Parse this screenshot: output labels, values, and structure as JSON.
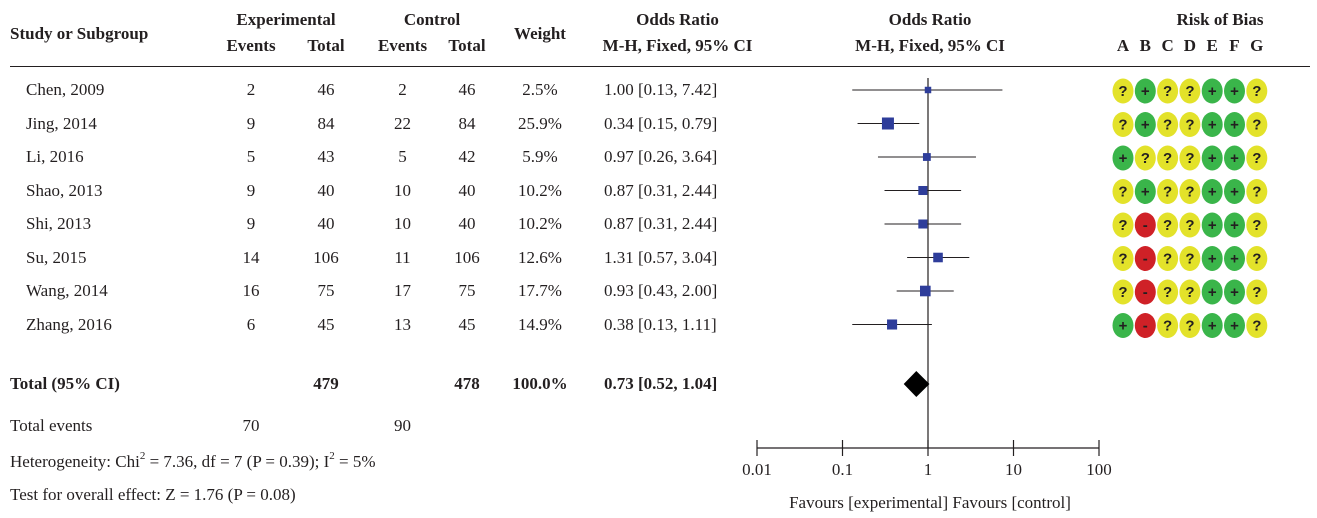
{
  "header": {
    "study_col": "Study or Subgroup",
    "experimental": "Experimental",
    "control": "Control",
    "events": "Events",
    "total": "Total",
    "weight": "Weight",
    "or_title": "Odds Ratio",
    "or_method": "M-H, Fixed, 95% CI",
    "plot_title": "Odds Ratio",
    "plot_method": "M-H, Fixed, 95% CI",
    "rob_title": "Risk of Bias",
    "rob_letters": [
      "A",
      "B",
      "C",
      "D",
      "E",
      "F",
      "G"
    ]
  },
  "studies": [
    {
      "name": "Chen, 2009",
      "exp_events": "2",
      "exp_total": "46",
      "ctrl_events": "2",
      "ctrl_total": "46",
      "weight": "2.5%",
      "ci": "1.00 [0.13, 7.42]",
      "or": 1.0,
      "low": 0.13,
      "high": 7.42,
      "w": 2.5,
      "rob": [
        "?",
        "+",
        "?",
        "?",
        "+",
        "+",
        "?"
      ]
    },
    {
      "name": "Jing, 2014",
      "exp_events": "9",
      "exp_total": "84",
      "ctrl_events": "22",
      "ctrl_total": "84",
      "weight": "25.9%",
      "ci": "0.34 [0.15, 0.79]",
      "or": 0.34,
      "low": 0.15,
      "high": 0.79,
      "w": 25.9,
      "rob": [
        "?",
        "+",
        "?",
        "?",
        "+",
        "+",
        "?"
      ]
    },
    {
      "name": "Li, 2016",
      "exp_events": "5",
      "exp_total": "43",
      "ctrl_events": "5",
      "ctrl_total": "42",
      "weight": "5.9%",
      "ci": "0.97 [0.26, 3.64]",
      "or": 0.97,
      "low": 0.26,
      "high": 3.64,
      "w": 5.9,
      "rob": [
        "+",
        "?",
        "?",
        "?",
        "+",
        "+",
        "?"
      ]
    },
    {
      "name": "Shao, 2013",
      "exp_events": "9",
      "exp_total": "40",
      "ctrl_events": "10",
      "ctrl_total": "40",
      "weight": "10.2%",
      "ci": "0.87 [0.31, 2.44]",
      "or": 0.87,
      "low": 0.31,
      "high": 2.44,
      "w": 10.2,
      "rob": [
        "?",
        "+",
        "?",
        "?",
        "+",
        "+",
        "?"
      ]
    },
    {
      "name": "Shi, 2013",
      "exp_events": "9",
      "exp_total": "40",
      "ctrl_events": "10",
      "ctrl_total": "40",
      "weight": "10.2%",
      "ci": "0.87 [0.31, 2.44]",
      "or": 0.87,
      "low": 0.31,
      "high": 2.44,
      "w": 10.2,
      "rob": [
        "?",
        "-",
        "?",
        "?",
        "+",
        "+",
        "?"
      ]
    },
    {
      "name": "Su, 2015",
      "exp_events": "14",
      "exp_total": "106",
      "ctrl_events": "11",
      "ctrl_total": "106",
      "weight": "12.6%",
      "ci": "1.31 [0.57, 3.04]",
      "or": 1.31,
      "low": 0.57,
      "high": 3.04,
      "w": 12.6,
      "rob": [
        "?",
        "-",
        "?",
        "?",
        "+",
        "+",
        "?"
      ]
    },
    {
      "name": "Wang, 2014",
      "exp_events": "16",
      "exp_total": "75",
      "ctrl_events": "17",
      "ctrl_total": "75",
      "weight": "17.7%",
      "ci": "0.93 [0.43, 2.00]",
      "or": 0.93,
      "low": 0.43,
      "high": 2.0,
      "w": 17.7,
      "rob": [
        "?",
        "-",
        "?",
        "?",
        "+",
        "+",
        "?"
      ]
    },
    {
      "name": "Zhang, 2016",
      "exp_events": "6",
      "exp_total": "45",
      "ctrl_events": "13",
      "ctrl_total": "45",
      "weight": "14.9%",
      "ci": "0.38 [0.13, 1.11]",
      "or": 0.38,
      "low": 0.13,
      "high": 1.11,
      "w": 14.9,
      "rob": [
        "+",
        "-",
        "?",
        "?",
        "+",
        "+",
        "?"
      ]
    }
  ],
  "total": {
    "label": "Total (95% CI)",
    "exp_total": "479",
    "ctrl_total": "478",
    "weight": "100.0%",
    "ci": "0.73 [0.52, 1.04]",
    "or": 0.73,
    "low": 0.52,
    "high": 1.04
  },
  "events": {
    "label": "Total events",
    "exp": "70",
    "ctrl": "90"
  },
  "heterogeneity": {
    "prefix": "Heterogeneity: Chi",
    "chi_sup": "2",
    "chi_rest": " = 7.36, df = 7 (P = 0.39); I",
    "i_sup": "2",
    "i_rest": " = 5%"
  },
  "overall_effect": "Test for overall effect: Z = 1.76 (P = 0.08)",
  "axis": {
    "ticks": [
      "0.01",
      "0.1",
      "1",
      "10",
      "100"
    ],
    "tick_values": [
      0.01,
      0.1,
      1,
      10,
      100
    ],
    "favours": "Favours [experimental] Favours [control]"
  },
  "colors": {
    "square": "#2e3d9a",
    "diamond": "#000000",
    "rob_low": "#3ab54a",
    "rob_unclear": "#e3e22a",
    "rob_high": "#cf2127"
  },
  "chart_data": {
    "type": "forest",
    "scale": "log",
    "xlim": [
      0.01,
      100
    ],
    "reference_line": 1,
    "title": "Odds Ratio",
    "subtitle": "M-H, Fixed, 95% CI",
    "xlabel": "Favours [experimental] Favours [control]",
    "categories": [
      "Chen, 2009",
      "Jing, 2014",
      "Li, 2016",
      "Shao, 2013",
      "Shi, 2013",
      "Su, 2015",
      "Wang, 2014",
      "Zhang, 2016"
    ],
    "series": [
      {
        "odds_ratio": [
          1.0,
          0.34,
          0.97,
          0.87,
          0.87,
          1.31,
          0.93,
          0.38
        ],
        "ci_low": [
          0.13,
          0.15,
          0.26,
          0.31,
          0.31,
          0.57,
          0.43,
          0.13
        ],
        "ci_high": [
          7.42,
          0.79,
          3.64,
          2.44,
          2.44,
          3.04,
          2.0,
          1.11
        ],
        "weight_pct": [
          2.5,
          25.9,
          5.9,
          10.2,
          10.2,
          12.6,
          17.7,
          14.9
        ]
      }
    ],
    "pooled": {
      "odds_ratio": 0.73,
      "ci_low": 0.52,
      "ci_high": 1.04
    }
  }
}
